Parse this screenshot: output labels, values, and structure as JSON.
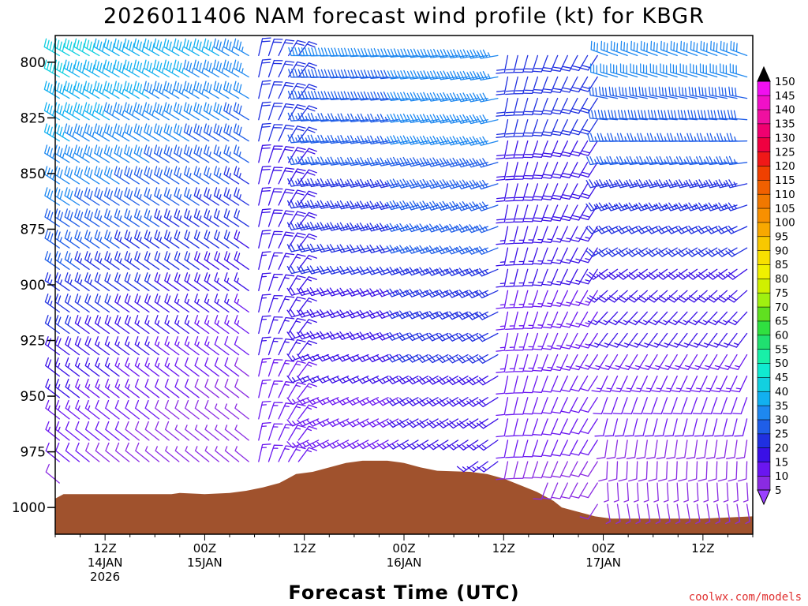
{
  "chart_data": {
    "type": "wind_barb_time_height",
    "title": "2026011406 NAM forecast wind profile (kt) for KBGR",
    "xlabel": "Forecast Time (UTC)",
    "ylabel": "",
    "y_units": "hPa",
    "ylim": [
      1012,
      788
    ],
    "x_units": "forecast hour",
    "xlim": [
      0,
      84
    ],
    "y_ticks": [
      800,
      825,
      850,
      875,
      900,
      925,
      950,
      975,
      1000
    ],
    "x_ticks": [
      {
        "hour": 6,
        "lines": [
          "12Z",
          "14JAN",
          "2026"
        ]
      },
      {
        "hour": 18,
        "lines": [
          "00Z",
          "15JAN"
        ]
      },
      {
        "hour": 30,
        "lines": [
          "12Z"
        ]
      },
      {
        "hour": 42,
        "lines": [
          "00Z",
          "16JAN"
        ]
      },
      {
        "hour": 54,
        "lines": [
          "12Z"
        ]
      },
      {
        "hour": 66,
        "lines": [
          "00Z",
          "17JAN"
        ]
      },
      {
        "hour": 78,
        "lines": [
          "12Z"
        ]
      }
    ],
    "colorbar": {
      "units": "kt",
      "levels": [
        5,
        10,
        15,
        20,
        25,
        30,
        35,
        40,
        45,
        50,
        55,
        60,
        65,
        70,
        75,
        80,
        85,
        90,
        95,
        100,
        105,
        110,
        115,
        120,
        125,
        130,
        135,
        140,
        145,
        150
      ],
      "colors": [
        "#8a2be2",
        "#6a16f0",
        "#3a10e6",
        "#2030e0",
        "#1f5ee8",
        "#1e88f0",
        "#12b0f0",
        "#12d0e0",
        "#10ead0",
        "#18f0a8",
        "#20e070",
        "#30e040",
        "#60e020",
        "#a0f010",
        "#d0f000",
        "#f0f000",
        "#f8e000",
        "#f8c800",
        "#f8a800",
        "#f89000",
        "#f07800",
        "#f06000",
        "#f04000",
        "#f01818",
        "#f00040",
        "#f00070",
        "#f010a0",
        "#f010c8",
        "#f010f0"
      ]
    },
    "terrain_surface_hpa": [
      [
        0,
        996
      ],
      [
        1,
        994
      ],
      [
        3,
        994
      ],
      [
        6,
        994
      ],
      [
        10,
        994
      ],
      [
        14,
        994
      ],
      [
        15,
        993.5
      ],
      [
        18,
        994
      ],
      [
        21,
        993.5
      ],
      [
        23,
        992.5
      ],
      [
        25,
        991
      ],
      [
        27,
        989
      ],
      [
        28,
        987
      ],
      [
        29,
        985
      ],
      [
        31,
        984
      ],
      [
        33,
        982
      ],
      [
        35,
        980
      ],
      [
        37,
        979
      ],
      [
        38.5,
        979
      ],
      [
        40,
        979
      ],
      [
        42,
        980
      ],
      [
        44,
        982
      ],
      [
        46,
        983.5
      ],
      [
        50,
        984
      ],
      [
        52,
        985
      ],
      [
        54,
        987
      ],
      [
        56,
        990
      ],
      [
        58,
        993
      ],
      [
        60,
        997
      ],
      [
        61,
        1000
      ],
      [
        63,
        1002
      ],
      [
        65,
        1004
      ],
      [
        67,
        1005
      ],
      [
        70,
        1005
      ],
      [
        74,
        1005
      ],
      [
        78,
        1005
      ],
      [
        84,
        1004
      ]
    ],
    "wind_profile_summary": [
      {
        "hours": "0-24",
        "direction": "northwesterly",
        "speed_kt": "5-45, strongest aloft near 800 hPa"
      },
      {
        "hours": "24-30",
        "direction": "northerly to northeasterly",
        "speed_kt": "10-25"
      },
      {
        "hours": "30-54",
        "direction": "westerly",
        "speed_kt": "20-35 aloft, 5-15 near surface"
      },
      {
        "hours": "54-66",
        "direction": "southerly to southwesterly",
        "speed_kt": "5-30"
      },
      {
        "hours": "66-84",
        "direction": "northwesterly aloft, southerly near surface",
        "speed_kt": "5-40"
      }
    ]
  },
  "credit": "coolwx.com/models"
}
